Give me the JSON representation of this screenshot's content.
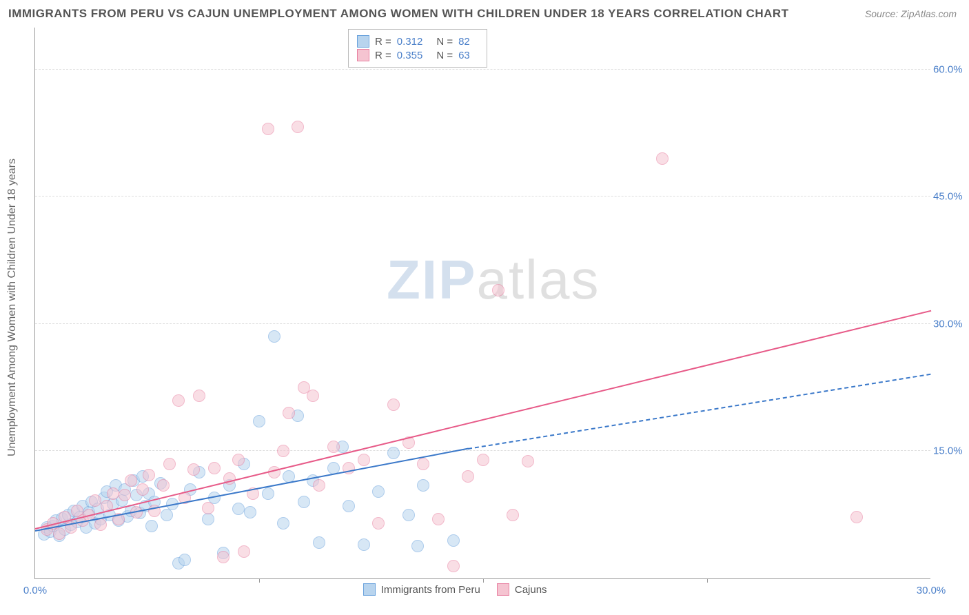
{
  "title": "IMMIGRANTS FROM PERU VS CAJUN UNEMPLOYMENT AMONG WOMEN WITH CHILDREN UNDER 18 YEARS CORRELATION CHART",
  "source_label": "Source:",
  "source_value": "ZipAtlas.com",
  "ylabel": "Unemployment Among Women with Children Under 18 years",
  "watermark_zip": "ZIP",
  "watermark_atlas": "atlas",
  "chart": {
    "type": "scatter",
    "xlim": [
      0,
      30
    ],
    "ylim": [
      0,
      65
    ],
    "xtick_labels": [
      "0.0%",
      "30.0%"
    ],
    "xtick_positions": [
      0,
      30
    ],
    "xtick_minor": [
      7.5,
      15,
      22.5
    ],
    "ytick_labels": [
      "15.0%",
      "30.0%",
      "45.0%",
      "60.0%"
    ],
    "ytick_positions": [
      15,
      30,
      45,
      60
    ],
    "background_color": "#ffffff",
    "grid_color": "#dddddd",
    "axis_color": "#999999",
    "tick_label_color": "#4a7fc9",
    "marker_radius": 9,
    "marker_stroke_width": 1.5,
    "series": [
      {
        "name": "Immigrants from Peru",
        "color_fill": "#b8d4ee",
        "color_stroke": "#6ba3dd",
        "fill_opacity": 0.55,
        "legend_label": "Immigrants from Peru",
        "stats": {
          "R": "0.312",
          "N": "82"
        },
        "trend": {
          "color": "#3a78c9",
          "width": 2,
          "x1": 0,
          "y1": 5.5,
          "x2": 14.5,
          "y2": 15.2,
          "dash_x2": 30,
          "dash_y2": 24.0
        },
        "points": [
          [
            0.3,
            5.2
          ],
          [
            0.4,
            6.0
          ],
          [
            0.5,
            5.5
          ],
          [
            0.6,
            6.2
          ],
          [
            0.7,
            6.8
          ],
          [
            0.8,
            5.0
          ],
          [
            0.9,
            7.1
          ],
          [
            1.0,
            5.8
          ],
          [
            1.1,
            7.5
          ],
          [
            1.2,
            6.3
          ],
          [
            1.3,
            8.0
          ],
          [
            1.4,
            6.7
          ],
          [
            1.5,
            7.2
          ],
          [
            1.6,
            8.5
          ],
          [
            1.7,
            6.0
          ],
          [
            1.8,
            7.8
          ],
          [
            1.9,
            9.0
          ],
          [
            2.0,
            6.5
          ],
          [
            2.1,
            8.2
          ],
          [
            2.2,
            7.0
          ],
          [
            2.3,
            9.5
          ],
          [
            2.4,
            10.2
          ],
          [
            2.5,
            7.5
          ],
          [
            2.6,
            8.8
          ],
          [
            2.7,
            11.0
          ],
          [
            2.8,
            6.8
          ],
          [
            2.9,
            9.2
          ],
          [
            3.0,
            10.5
          ],
          [
            3.1,
            7.3
          ],
          [
            3.2,
            8.0
          ],
          [
            3.3,
            11.5
          ],
          [
            3.4,
            9.8
          ],
          [
            3.5,
            7.7
          ],
          [
            3.6,
            12.0
          ],
          [
            3.7,
            8.5
          ],
          [
            3.8,
            10.0
          ],
          [
            3.9,
            6.2
          ],
          [
            4.0,
            9.0
          ],
          [
            4.2,
            11.2
          ],
          [
            4.4,
            7.5
          ],
          [
            4.6,
            8.8
          ],
          [
            4.8,
            1.8
          ],
          [
            5.0,
            2.2
          ],
          [
            5.2,
            10.5
          ],
          [
            5.5,
            12.5
          ],
          [
            5.8,
            7.0
          ],
          [
            6.0,
            9.5
          ],
          [
            6.3,
            3.0
          ],
          [
            6.5,
            11.0
          ],
          [
            6.8,
            8.2
          ],
          [
            7.0,
            13.5
          ],
          [
            7.2,
            7.8
          ],
          [
            7.5,
            18.5
          ],
          [
            7.8,
            10.0
          ],
          [
            8.0,
            28.5
          ],
          [
            8.3,
            6.5
          ],
          [
            8.5,
            12.0
          ],
          [
            8.8,
            19.2
          ],
          [
            9.0,
            9.0
          ],
          [
            9.3,
            11.5
          ],
          [
            9.5,
            4.2
          ],
          [
            10.0,
            13.0
          ],
          [
            10.3,
            15.5
          ],
          [
            10.5,
            8.5
          ],
          [
            11.0,
            4.0
          ],
          [
            11.5,
            10.2
          ],
          [
            12.0,
            14.8
          ],
          [
            12.5,
            7.5
          ],
          [
            13.0,
            11.0
          ],
          [
            14.0,
            4.5
          ],
          [
            12.8,
            3.8
          ]
        ]
      },
      {
        "name": "Cajuns",
        "color_fill": "#f5c4d1",
        "color_stroke": "#e87fa0",
        "fill_opacity": 0.55,
        "legend_label": "Cajuns",
        "stats": {
          "R": "0.355",
          "N": "63"
        },
        "trend": {
          "color": "#e75a88",
          "width": 2,
          "x1": 0,
          "y1": 5.8,
          "x2": 30,
          "y2": 31.5
        },
        "points": [
          [
            0.4,
            5.8
          ],
          [
            0.6,
            6.5
          ],
          [
            0.8,
            5.3
          ],
          [
            1.0,
            7.2
          ],
          [
            1.2,
            6.0
          ],
          [
            1.4,
            8.0
          ],
          [
            1.6,
            6.8
          ],
          [
            1.8,
            7.5
          ],
          [
            2.0,
            9.2
          ],
          [
            2.2,
            6.3
          ],
          [
            2.4,
            8.5
          ],
          [
            2.6,
            10.0
          ],
          [
            2.8,
            7.0
          ],
          [
            3.0,
            9.8
          ],
          [
            3.2,
            11.5
          ],
          [
            3.4,
            7.8
          ],
          [
            3.6,
            10.5
          ],
          [
            3.8,
            12.2
          ],
          [
            4.0,
            8.0
          ],
          [
            4.3,
            11.0
          ],
          [
            4.5,
            13.5
          ],
          [
            4.8,
            21.0
          ],
          [
            5.0,
            9.5
          ],
          [
            5.3,
            12.8
          ],
          [
            5.5,
            21.5
          ],
          [
            5.8,
            8.3
          ],
          [
            6.0,
            13.0
          ],
          [
            6.3,
            2.5
          ],
          [
            6.5,
            11.8
          ],
          [
            6.8,
            14.0
          ],
          [
            7.0,
            3.2
          ],
          [
            7.3,
            10.0
          ],
          [
            7.8,
            53.0
          ],
          [
            8.0,
            12.5
          ],
          [
            8.3,
            15.0
          ],
          [
            8.5,
            19.5
          ],
          [
            8.8,
            53.2
          ],
          [
            9.0,
            22.5
          ],
          [
            9.3,
            21.5
          ],
          [
            9.5,
            11.0
          ],
          [
            10.0,
            15.5
          ],
          [
            10.5,
            13.0
          ],
          [
            11.0,
            14.0
          ],
          [
            11.5,
            6.5
          ],
          [
            12.0,
            20.5
          ],
          [
            12.5,
            16.0
          ],
          [
            13.0,
            13.5
          ],
          [
            13.5,
            7.0
          ],
          [
            14.0,
            1.5
          ],
          [
            14.5,
            12.0
          ],
          [
            15.0,
            14.0
          ],
          [
            15.5,
            34.0
          ],
          [
            16.0,
            7.5
          ],
          [
            16.5,
            13.8
          ],
          [
            21.0,
            49.5
          ],
          [
            27.5,
            7.2
          ]
        ]
      }
    ]
  },
  "legend_top": {
    "r_label": "R  =",
    "n_label": "N  ="
  }
}
